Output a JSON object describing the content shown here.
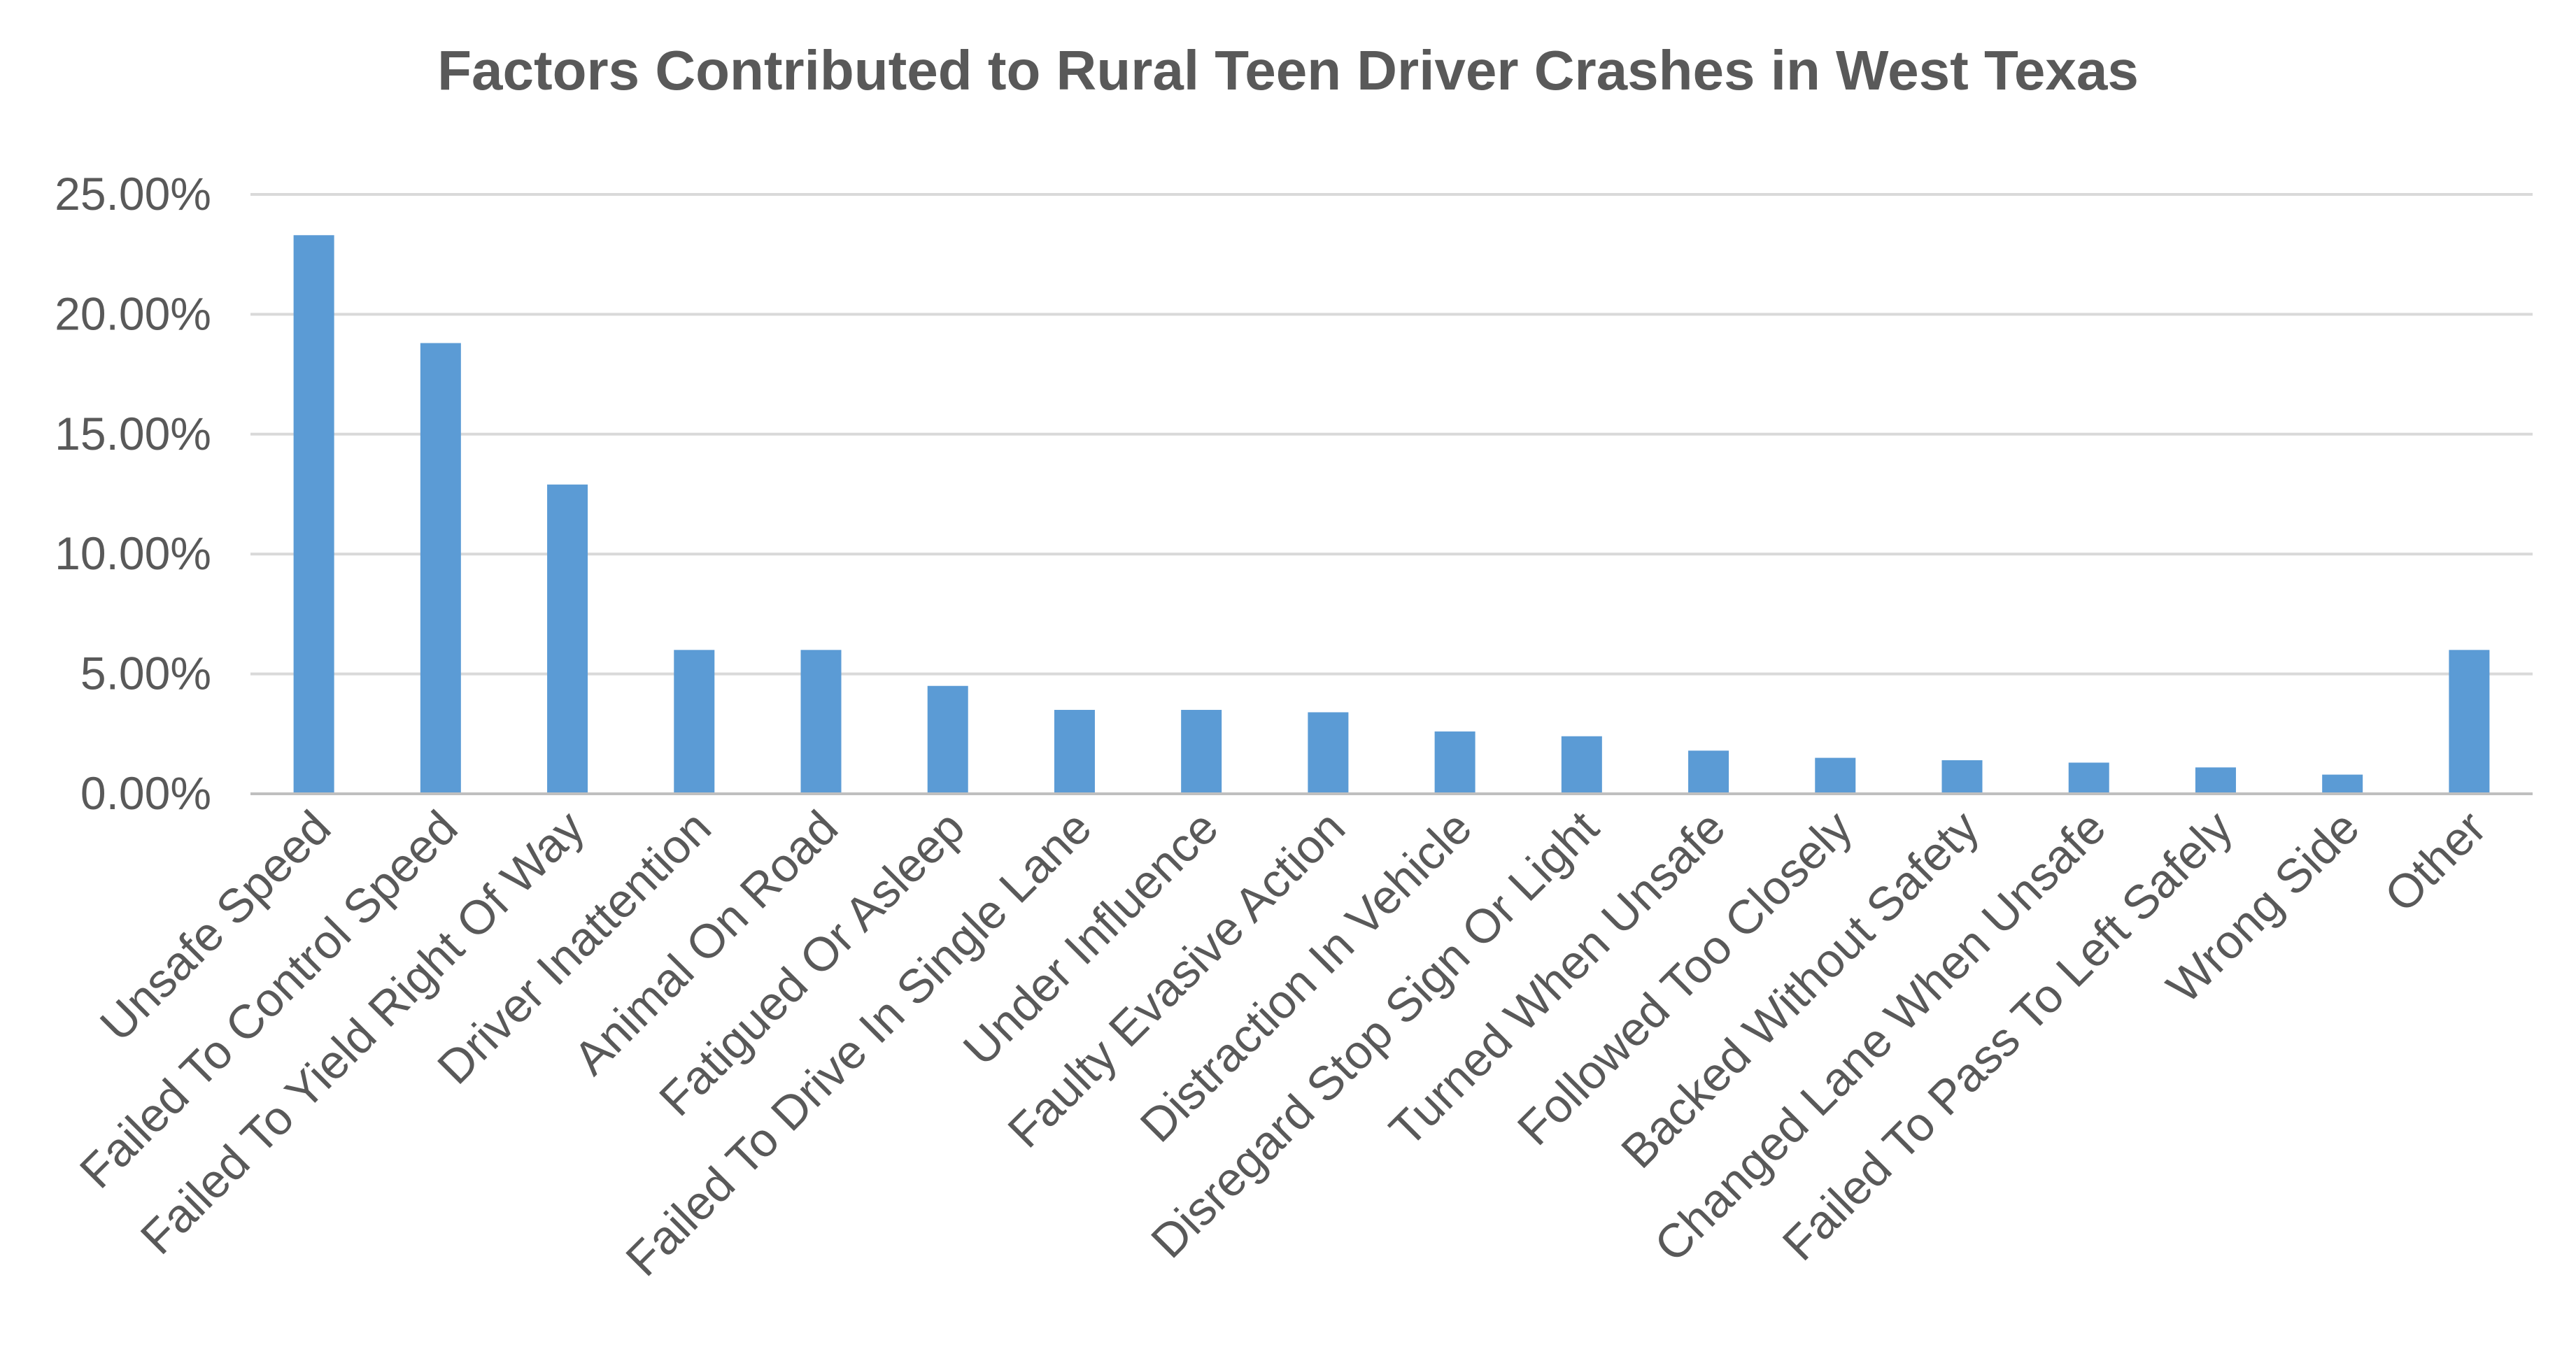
{
  "chart_data": {
    "type": "bar",
    "title": "Factors Contributed to Rural Teen Driver Crashes in West Texas",
    "xlabel": "",
    "ylabel": "",
    "ylim": [
      0,
      25
    ],
    "yticks": [
      0,
      5,
      10,
      15,
      20,
      25
    ],
    "ytick_labels": [
      "0.00%",
      "5.00%",
      "10.00%",
      "15.00%",
      "20.00%",
      "25.00%"
    ],
    "grid": true,
    "legend": "none",
    "bar_color": "#5b9bd5",
    "categories": [
      "Unsafe Speed",
      "Failed To Control Speed",
      "Failed To Yield Right Of Way",
      "Driver Inattention",
      "Animal On Road",
      "Fatigued Or Asleep",
      "Failed To Drive In Single Lane",
      "Under Influence",
      "Faulty Evasive Action",
      "Distraction In Vehicle",
      "Disregard Stop Sign Or Light",
      "Turned When Unsafe",
      "Followed Too Closely",
      "Backed Without Safety",
      "Changed Lane When Unsafe",
      "Failed To Pass To Left Safely",
      "Wrong Side",
      "Other"
    ],
    "values": [
      23.3,
      18.8,
      12.9,
      6.0,
      6.0,
      4.5,
      3.5,
      3.5,
      3.4,
      2.6,
      2.4,
      1.8,
      1.5,
      1.4,
      1.3,
      1.1,
      0.8,
      6.0
    ]
  }
}
